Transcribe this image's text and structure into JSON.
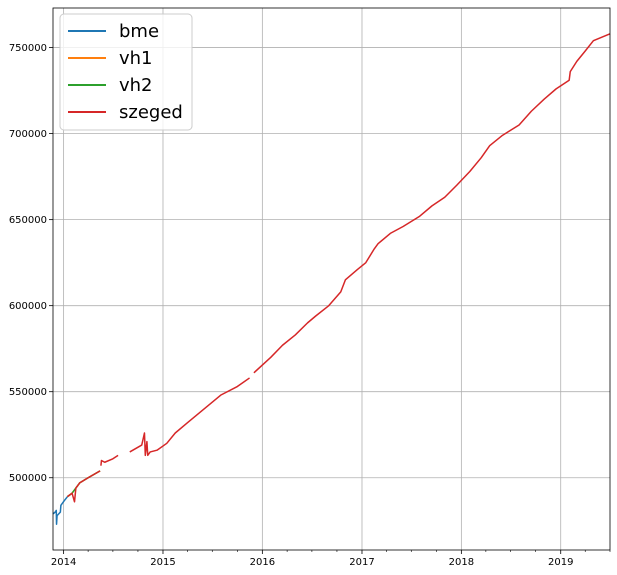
{
  "chart_data": {
    "type": "line",
    "title": "",
    "xlabel": "",
    "ylabel": "",
    "x_range": [
      "2013-11-23",
      "2019-07-01"
    ],
    "ylim": [
      458000,
      773000
    ],
    "grid": true,
    "legend_position": "top-left",
    "x_ticks": [
      "2014",
      "2015",
      "2016",
      "2017",
      "2018",
      "2019"
    ],
    "y_ticks": [
      500000,
      550000,
      600000,
      650000,
      700000,
      750000
    ],
    "y_tick_labels": [
      "500000",
      "550000",
      "600000",
      "650000",
      "700000",
      "750000"
    ],
    "series": [
      {
        "name": "bme",
        "color": "#1f77b4",
        "points": [
          [
            "2013-11-23",
            479000
          ],
          [
            "2013-12-01",
            480000
          ],
          [
            "2013-12-05",
            481000
          ],
          [
            "2013-12-06",
            473000
          ],
          [
            "2013-12-08",
            478000
          ],
          [
            "2013-12-20",
            480000
          ],
          [
            "2013-12-22",
            484000
          ],
          [
            "2014-01-05",
            487000
          ],
          [
            "2014-01-15",
            489000
          ]
        ]
      },
      {
        "name": "vh1",
        "color": "#ff7f0e",
        "points": [
          [
            "2014-01-15",
            489000
          ],
          [
            "2014-02-01",
            491000
          ],
          [
            "2014-02-15",
            494000
          ],
          [
            "2014-03-01",
            497000
          ],
          [
            "2014-04-01",
            500000
          ],
          [
            "2014-05-15",
            504000
          ]
        ]
      },
      {
        "name": "vh2",
        "color": "#2ca02c",
        "points": [
          [
            "2014-01-15",
            489000
          ],
          [
            "2014-02-01",
            491000
          ],
          [
            "2014-02-15",
            494000
          ],
          [
            "2014-03-01",
            497000
          ],
          [
            "2014-04-01",
            500000
          ],
          [
            "2014-05-15",
            504000
          ]
        ]
      },
      {
        "name": "szeged",
        "color": "#d62728",
        "segments": [
          [
            [
              "2014-01-15",
              489000
            ],
            [
              "2014-02-01",
              491000
            ],
            [
              "2014-02-10",
              486000
            ],
            [
              "2014-02-15",
              494000
            ],
            [
              "2014-03-01",
              497000
            ],
            [
              "2014-04-01",
              500000
            ],
            [
              "2014-05-15",
              504000
            ]
          ],
          [
            [
              "2014-05-18",
              507000
            ],
            [
              "2014-05-20",
              510000
            ],
            [
              "2014-06-01",
              509000
            ],
            [
              "2014-07-01",
              511000
            ],
            [
              "2014-07-20",
              513000
            ]
          ],
          [
            [
              "2014-09-01",
              515000
            ],
            [
              "2014-10-15",
              519000
            ],
            [
              "2014-10-25",
              526000
            ],
            [
              "2014-10-28",
              513000
            ],
            [
              "2014-11-03",
              521000
            ],
            [
              "2014-11-06",
              513000
            ],
            [
              "2014-11-15",
              515000
            ],
            [
              "2014-12-10",
              516000
            ],
            [
              "2015-01-15",
              520000
            ],
            [
              "2015-02-15",
              526000
            ],
            [
              "2015-04-01",
              532000
            ],
            [
              "2015-06-01",
              540000
            ],
            [
              "2015-08-01",
              548000
            ],
            [
              "2015-10-01",
              553000
            ],
            [
              "2015-11-15",
              558000
            ]
          ],
          [
            [
              "2015-12-01",
              561000
            ],
            [
              "2016-02-01",
              570000
            ],
            [
              "2016-03-15",
              577000
            ],
            [
              "2016-05-01",
              583000
            ],
            [
              "2016-06-15",
              590000
            ],
            [
              "2016-07-15",
              594000
            ],
            [
              "2016-09-01",
              600000
            ],
            [
              "2016-10-15",
              608000
            ],
            [
              "2016-11-01",
              615000
            ],
            [
              "2016-12-15",
              621000
            ],
            [
              "2017-01-15",
              625000
            ],
            [
              "2017-02-15",
              633000
            ],
            [
              "2017-03-01",
              636000
            ],
            [
              "2017-04-15",
              642000
            ],
            [
              "2017-06-01",
              646000
            ],
            [
              "2017-08-01",
              652000
            ],
            [
              "2017-09-15",
              658000
            ],
            [
              "2017-11-01",
              663000
            ],
            [
              "2017-12-15",
              670000
            ],
            [
              "2018-02-01",
              678000
            ],
            [
              "2018-03-15",
              686000
            ],
            [
              "2018-04-15",
              693000
            ],
            [
              "2018-06-01",
              699000
            ],
            [
              "2018-08-01",
              705000
            ],
            [
              "2018-09-15",
              713000
            ],
            [
              "2018-11-01",
              720000
            ],
            [
              "2018-12-15",
              726000
            ],
            [
              "2019-02-01",
              731000
            ],
            [
              "2019-02-05",
              736000
            ],
            [
              "2019-03-01",
              742000
            ],
            [
              "2019-04-01",
              748000
            ],
            [
              "2019-05-01",
              754000
            ],
            [
              "2019-07-01",
              758000
            ]
          ]
        ]
      }
    ]
  }
}
